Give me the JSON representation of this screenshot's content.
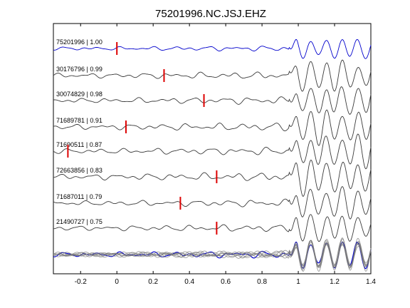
{
  "chart_data": {
    "type": "line",
    "title": "75201996.NC.JSJ.EHZ",
    "xlabel": "",
    "ylabel": "",
    "xlim": [
      -0.35,
      1.4
    ],
    "xticks": [
      -0.2,
      0,
      0.2,
      0.4,
      0.6,
      0.8,
      1,
      1.2,
      1.4
    ],
    "xtick_labels": [
      "-0.2",
      "0",
      "0.2",
      "0.4",
      "0.6",
      "0.8",
      "1",
      "1.2",
      "1.4"
    ],
    "grid": false,
    "colors": {
      "reference": "#0000cc",
      "trace": "#3a3a3a",
      "pick": "#dd0000",
      "stack": "#777777"
    },
    "traces": [
      {
        "label": "75201996 | 1.00",
        "pick": 0.0,
        "color": "reference"
      },
      {
        "label": "30176796 | 0.99",
        "pick": 0.26,
        "color": "trace"
      },
      {
        "label": "30074829 | 0.98",
        "pick": 0.48,
        "color": "trace"
      },
      {
        "label": "71689781 | 0.91",
        "pick": 0.05,
        "color": "trace"
      },
      {
        "label": "71690511 | 0.87",
        "pick": -0.27,
        "color": "trace"
      },
      {
        "label": "72663856 | 0.83",
        "pick": 0.55,
        "color": "trace"
      },
      {
        "label": "71687011 | 0.79",
        "pick": 0.35,
        "color": "trace"
      },
      {
        "label": "21490727 | 0.75",
        "pick": 0.55,
        "color": "trace"
      }
    ]
  }
}
